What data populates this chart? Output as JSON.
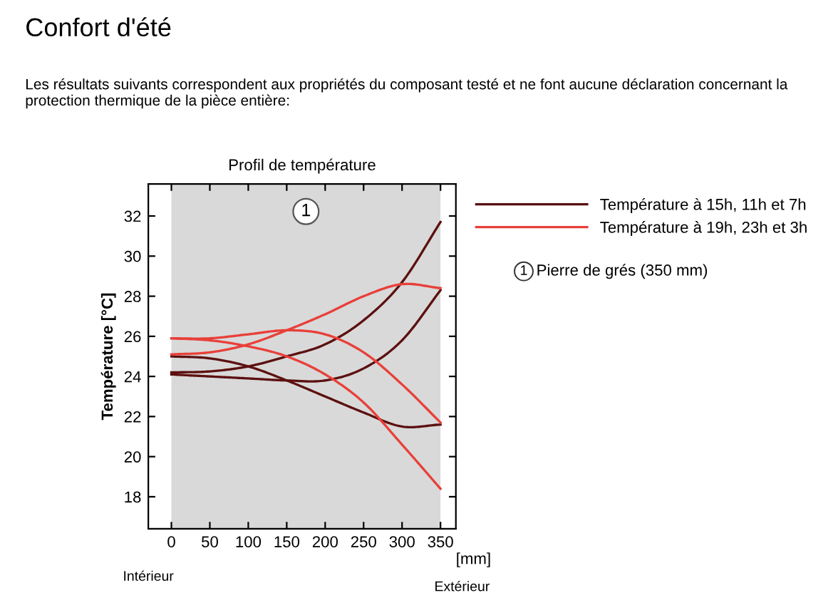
{
  "chart_data": {
    "type": "line",
    "title": "Confort d'été",
    "subtitle": "Les résultats suivants correspondent aux propriétés du composant testé et ne font aucune déclaration concernant la protection thermique de la pièce entière:",
    "xlabel": "[mm]",
    "ylabel": "Température [°C]",
    "annotations": [
      "Profil de température",
      "Intérieur",
      "Extérieur",
      "Pierre de grés (350 mm)"
    ],
    "x": [
      0,
      50,
      100,
      150,
      200,
      250,
      300,
      350
    ],
    "series": [
      {
        "name": "Température à 15h, 11h et 7h",
        "color": "#5c1010",
        "values": [
          24.2,
          24.25,
          24.5,
          25.0,
          25.6,
          26.8,
          28.7,
          31.7
        ]
      },
      {
        "color": "#5c1010",
        "values": [
          24.1,
          24.0,
          23.9,
          23.8,
          23.8,
          24.4,
          25.8,
          28.3
        ]
      },
      {
        "color": "#5c1010",
        "values": [
          25.0,
          24.9,
          24.5,
          23.8,
          23.0,
          22.2,
          21.5,
          21.6
        ]
      },
      {
        "name": "Température à 19h, 23h et 3h",
        "color": "#e8403a",
        "values": [
          25.1,
          25.2,
          25.6,
          26.3,
          27.1,
          28.0,
          28.6,
          28.4
        ]
      },
      {
        "color": "#e8403a",
        "values": [
          25.9,
          25.9,
          26.1,
          26.3,
          26.1,
          25.2,
          23.6,
          21.7
        ]
      },
      {
        "color": "#e8403a",
        "values": [
          25.9,
          25.8,
          25.5,
          25.0,
          24.1,
          22.7,
          20.6,
          18.4
        ]
      }
    ],
    "bands": [
      {
        "axis": "x",
        "from": 0,
        "to": 350,
        "label": "1",
        "color": "#d9d9d9"
      }
    ],
    "xlim": [
      -30,
      370
    ],
    "ylim": [
      16.4,
      33.6
    ],
    "xticks": [
      0,
      50,
      100,
      150,
      200,
      250,
      300,
      350
    ],
    "yticks": [
      18,
      20,
      22,
      24,
      26,
      28,
      30,
      32
    ],
    "grid": false,
    "legend": "right",
    "marker": "none",
    "line_style": "solid"
  }
}
